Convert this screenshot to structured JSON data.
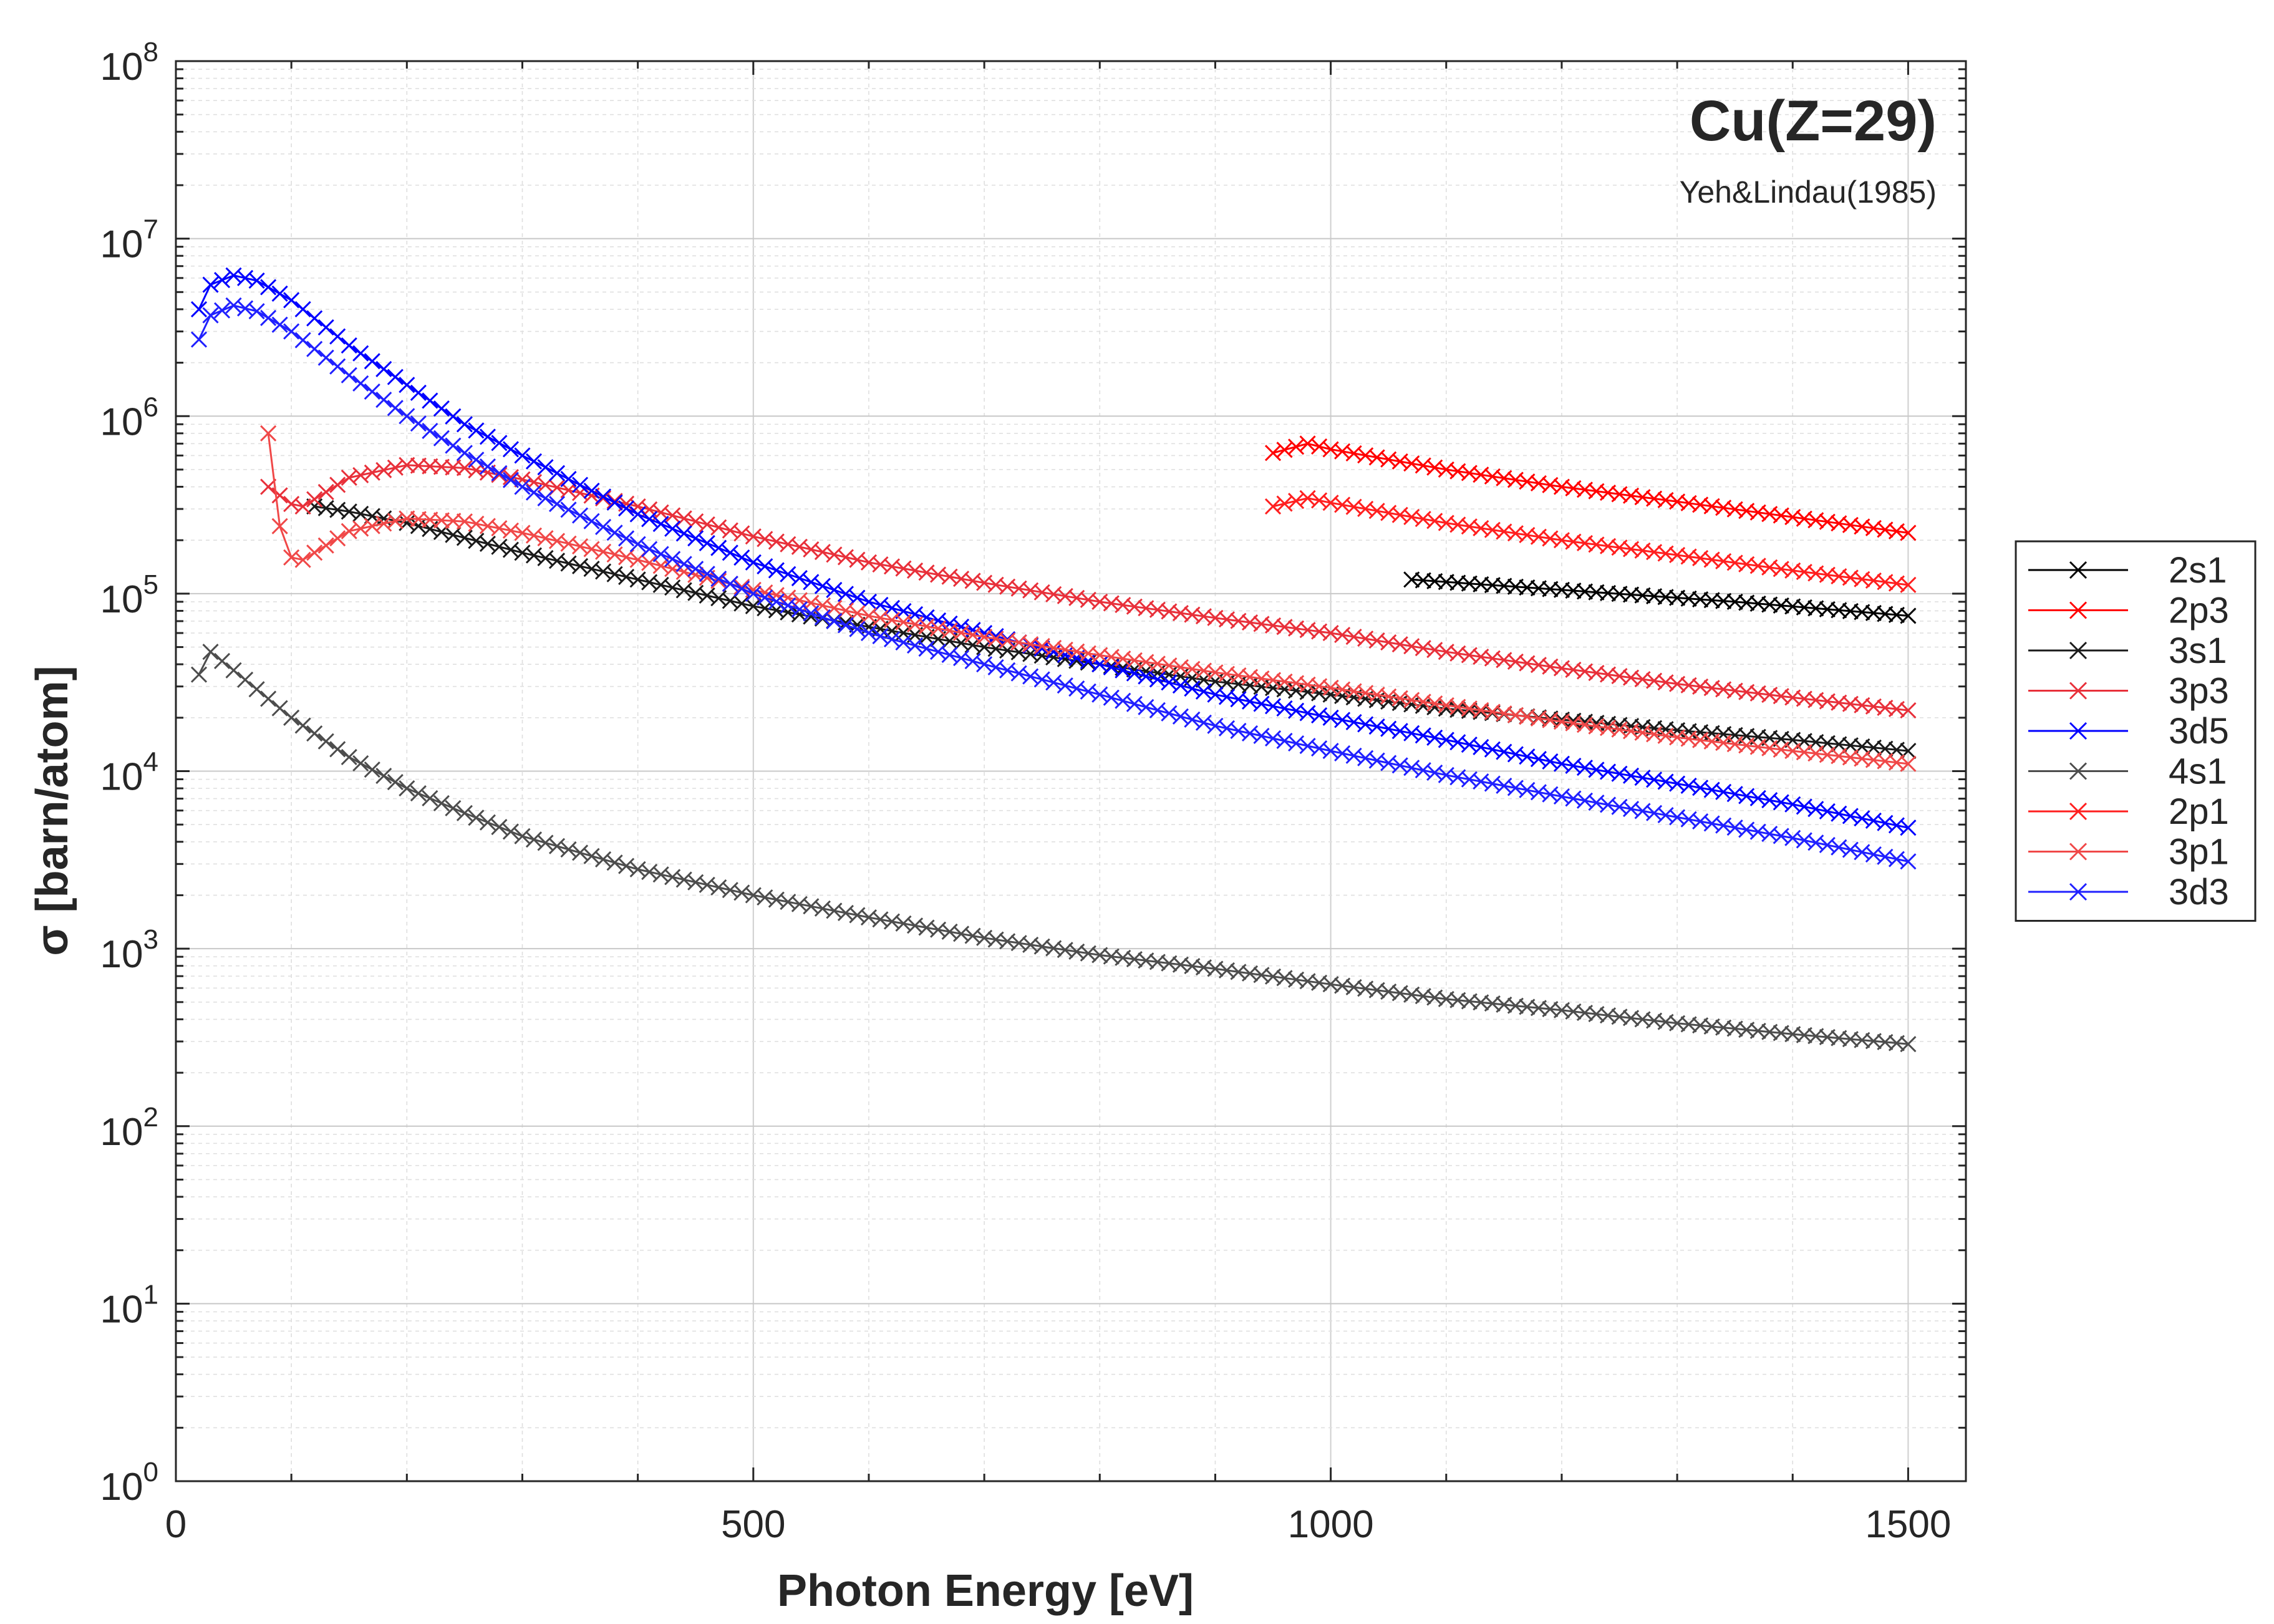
{
  "chart_data": {
    "type": "line",
    "title": "Cu(Z=29)",
    "subtitle": "Yeh&Lindau(1985)",
    "xlabel": "Photon Energy [eV]",
    "ylabel": "σ [barn/atom]",
    "xlim": [
      0,
      1550
    ],
    "ylim": [
      1,
      100000000
    ],
    "yscale": "log",
    "grid": true,
    "legend_position": "outside-right",
    "marker": "x",
    "xticks": [
      0,
      500,
      1000,
      1500
    ],
    "yticks": [
      {
        "value": 1,
        "base": "10",
        "exp": "0"
      },
      {
        "value": 10,
        "base": "10",
        "exp": "1"
      },
      {
        "value": 100,
        "base": "10",
        "exp": "2"
      },
      {
        "value": 1000,
        "base": "10",
        "exp": "3"
      },
      {
        "value": 10000,
        "base": "10",
        "exp": "4"
      },
      {
        "value": 100000,
        "base": "10",
        "exp": "5"
      },
      {
        "value": 1000000,
        "base": "10",
        "exp": "6"
      },
      {
        "value": 10000000,
        "base": "10",
        "exp": "7"
      },
      {
        "value": 100000000,
        "base": "10",
        "exp": "8"
      }
    ],
    "series": [
      {
        "name": "2s1",
        "color": "#000000",
        "x": [
          1070,
          1200,
          1350,
          1500
        ],
        "y": [
          120000,
          105000,
          90000,
          75000
        ]
      },
      {
        "name": "2p3",
        "color": "#ff0000",
        "x": [
          950,
          980,
          1000,
          1100,
          1200,
          1300,
          1400,
          1500
        ],
        "y": [
          620000,
          700000,
          650000,
          500000,
          400000,
          330000,
          270000,
          220000
        ]
      },
      {
        "name": "3s1",
        "color": "#1a1a1a",
        "x": [
          120,
          150,
          200,
          300,
          400,
          500,
          600,
          700,
          800,
          900,
          1000,
          1100,
          1200,
          1300,
          1400,
          1500
        ],
        "y": [
          310000,
          290000,
          250000,
          170000,
          120000,
          85000,
          65000,
          50000,
          40000,
          32000,
          27000,
          22500,
          19500,
          17000,
          15000,
          13000
        ]
      },
      {
        "name": "3p3",
        "color": "#e8303a",
        "x": [
          80,
          100,
          110,
          150,
          200,
          250,
          300,
          400,
          500,
          600,
          700,
          800,
          900,
          1000,
          1100,
          1200,
          1300,
          1400,
          1500
        ],
        "y": [
          400000,
          320000,
          310000,
          450000,
          530000,
          510000,
          440000,
          310000,
          210000,
          150000,
          115000,
          90000,
          73000,
          60000,
          47000,
          38000,
          31000,
          26000,
          22000
        ]
      },
      {
        "name": "3d5",
        "color": "#0000ff",
        "x": [
          20,
          30,
          50,
          70,
          100,
          150,
          200,
          250,
          300,
          400,
          500,
          600,
          700,
          800,
          900,
          1000,
          1100,
          1200,
          1300,
          1400,
          1500
        ],
        "y": [
          4000000,
          5500000,
          6200000,
          5800000,
          4500000,
          2500000,
          1500000,
          900000,
          600000,
          280000,
          150000,
          90000,
          60000,
          40000,
          27000,
          20000,
          15000,
          11000,
          8500,
          6500,
          4800
        ]
      },
      {
        "name": "4s1",
        "color": "#4d4d4d",
        "x": [
          20,
          30,
          50,
          100,
          150,
          200,
          250,
          300,
          400,
          500,
          600,
          700,
          800,
          900,
          1000,
          1100,
          1200,
          1300,
          1400,
          1500
        ],
        "y": [
          35000,
          47000,
          37000,
          20000,
          12000,
          8000,
          5800,
          4300,
          2800,
          2000,
          1500,
          1150,
          920,
          770,
          630,
          520,
          450,
          380,
          330,
          290
        ]
      },
      {
        "name": "2p1",
        "color": "#ff1f1f",
        "x": [
          950,
          980,
          1000,
          1100,
          1200,
          1300,
          1400,
          1500
        ],
        "y": [
          310000,
          345000,
          325000,
          250000,
          200000,
          165000,
          135000,
          112000
        ]
      },
      {
        "name": "3p1",
        "color": "#f04848",
        "x": [
          80,
          90,
          100,
          110,
          150,
          200,
          250,
          300,
          400,
          500,
          600,
          700,
          800,
          900,
          1000,
          1100,
          1200,
          1300,
          1400,
          1500
        ],
        "y": [
          800000,
          240000,
          160000,
          155000,
          225000,
          265000,
          255000,
          220000,
          155000,
          105000,
          75000,
          57000,
          45000,
          36000,
          29500,
          23500,
          19000,
          15500,
          13000,
          11000
        ]
      },
      {
        "name": "3d3",
        "color": "#2020ff",
        "x": [
          20,
          30,
          50,
          70,
          100,
          150,
          200,
          250,
          300,
          400,
          500,
          600,
          700,
          800,
          900,
          1000,
          1100,
          1200,
          1300,
          1400,
          1500
        ],
        "y": [
          2700000,
          3700000,
          4200000,
          3900000,
          3000000,
          1700000,
          1000000,
          620000,
          400000,
          190000,
          100000,
          60000,
          40000,
          27000,
          18000,
          13000,
          9500,
          7200,
          5500,
          4200,
          3100
        ]
      }
    ]
  }
}
